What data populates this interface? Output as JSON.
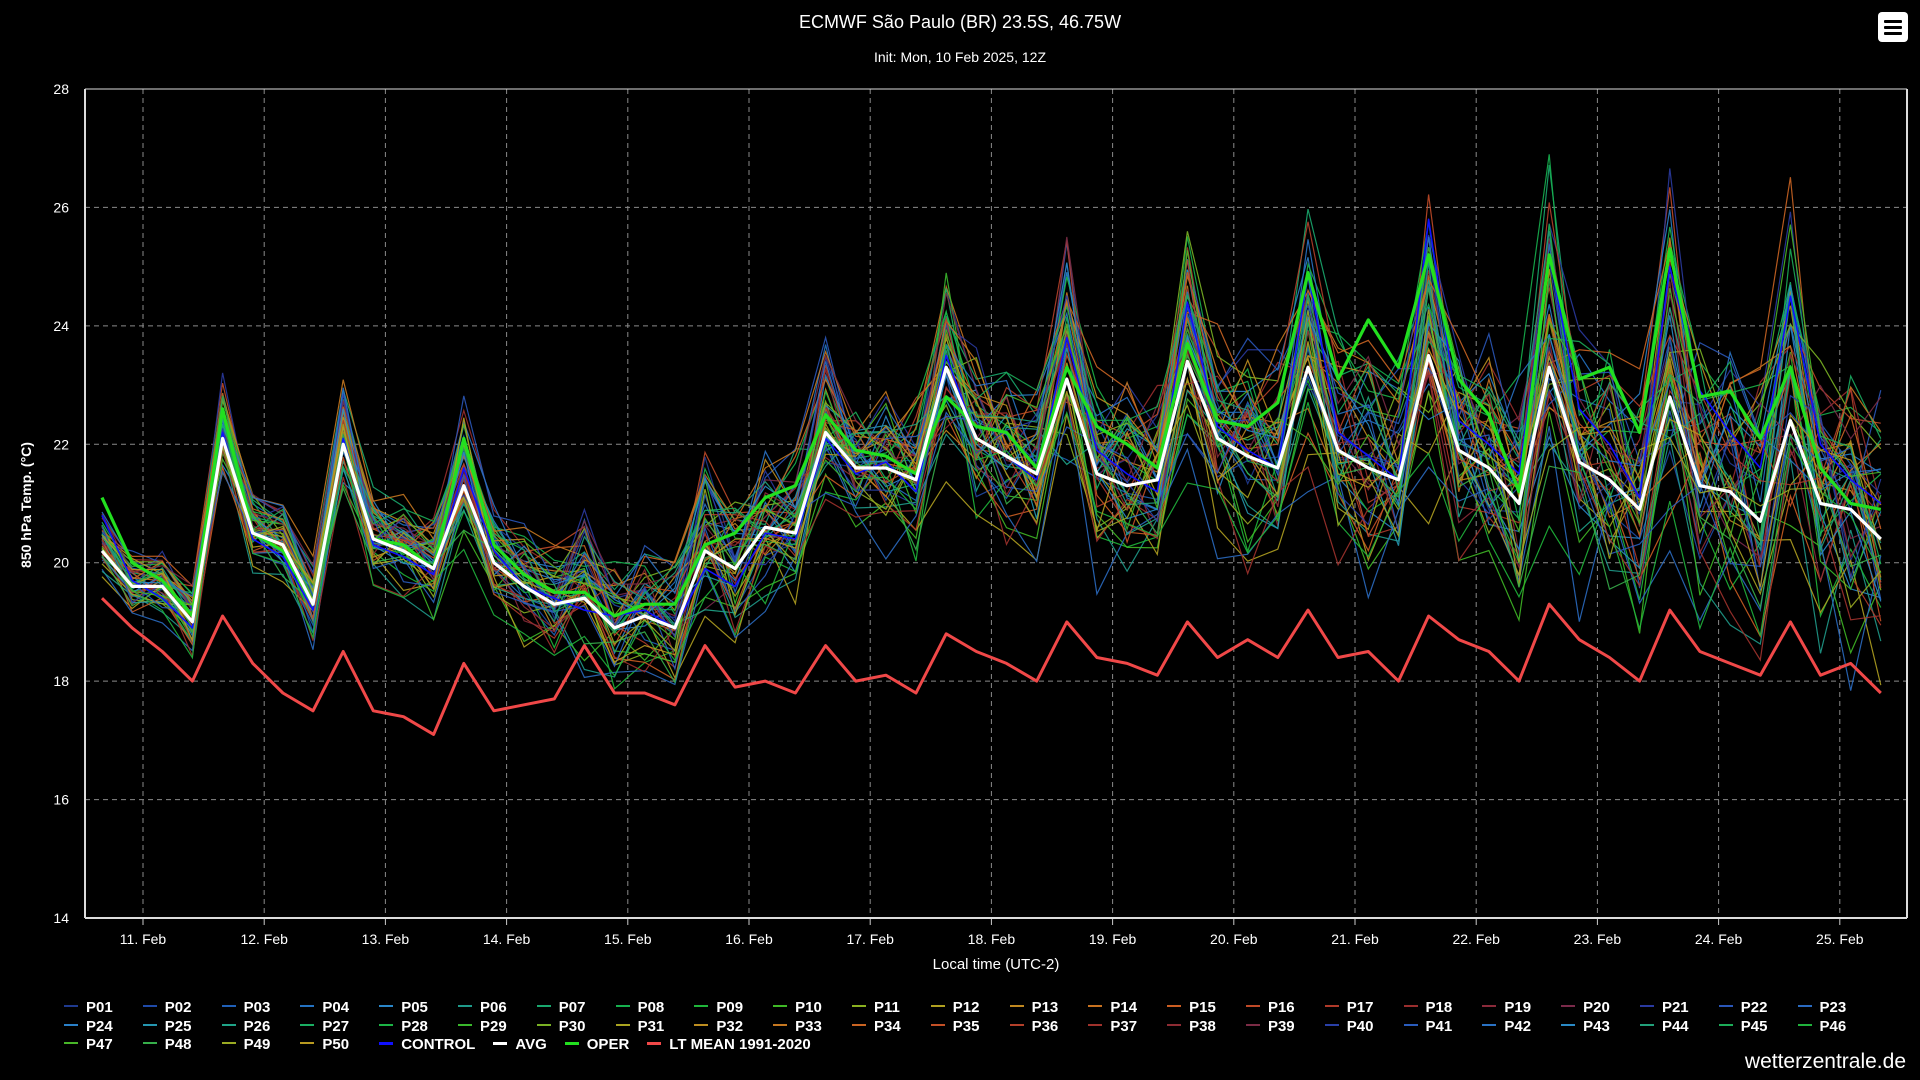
{
  "title": "ECMWF São Paulo (BR) 23.5S, 46.75W",
  "subtitle": "Init: Mon, 10 Feb 2025, 12Z",
  "watermark": "wetterzentrale.de",
  "menu": {
    "icon": "hamburger-menu-icon"
  },
  "colors": {
    "background": "#000000",
    "grid": "#8a8a8a",
    "avg": "#ffffff",
    "oper": "#22e01f",
    "lt_mean": "#f04848",
    "control": "#1010ff"
  },
  "chart_data": {
    "type": "line",
    "title": "ECMWF São Paulo (BR) 23.5S, 46.75W",
    "subtitle": "Init: Mon, 10 Feb 2025, 12Z",
    "xlabel": "Local time (UTC-2)",
    "ylabel": "850 hPa Temp. (°C)",
    "ylim": [
      14,
      28
    ],
    "yticks": [
      "14",
      "16",
      "18",
      "20",
      "22",
      "24",
      "26",
      "28"
    ],
    "x_step_hours": 6,
    "x_tick_labels": [
      "11. Feb",
      "12. Feb",
      "13. Feb",
      "14. Feb",
      "15. Feb",
      "16. Feb",
      "17. Feb",
      "18. Feb",
      "19. Feb",
      "20. Feb",
      "21. Feb",
      "22. Feb",
      "23. Feb",
      "24. Feb",
      "25. Feb"
    ],
    "grid": true,
    "legend_position": "bottom",
    "ensemble_members": [
      {
        "name": "P01",
        "color": "#1f3a8f"
      },
      {
        "name": "P02",
        "color": "#1f4aa8"
      },
      {
        "name": "P03",
        "color": "#2060b8"
      },
      {
        "name": "P04",
        "color": "#2472c2"
      },
      {
        "name": "P05",
        "color": "#2a86c9"
      },
      {
        "name": "P06",
        "color": "#1f9a8a"
      },
      {
        "name": "P07",
        "color": "#19a86e"
      },
      {
        "name": "P08",
        "color": "#16b04e"
      },
      {
        "name": "P09",
        "color": "#1fb63a"
      },
      {
        "name": "P10",
        "color": "#3fb826"
      },
      {
        "name": "P11",
        "color": "#8ab020"
      },
      {
        "name": "P12",
        "color": "#b0a020"
      },
      {
        "name": "P13",
        "color": "#c08820"
      },
      {
        "name": "P14",
        "color": "#c87220"
      },
      {
        "name": "P15",
        "color": "#cc5e22"
      },
      {
        "name": "P16",
        "color": "#c04a28"
      },
      {
        "name": "P17",
        "color": "#b03a2a"
      },
      {
        "name": "P18",
        "color": "#9a2e2e"
      },
      {
        "name": "P19",
        "color": "#8a2a3a"
      },
      {
        "name": "P20",
        "color": "#7a2a4a"
      },
      {
        "name": "P21",
        "color": "#2a3aa0"
      },
      {
        "name": "P22",
        "color": "#2a56b8"
      },
      {
        "name": "P23",
        "color": "#2a6ac0"
      },
      {
        "name": "P24",
        "color": "#2a80c8"
      },
      {
        "name": "P25",
        "color": "#2596b0"
      },
      {
        "name": "P26",
        "color": "#1fa488"
      },
      {
        "name": "P27",
        "color": "#1aae62"
      },
      {
        "name": "P28",
        "color": "#1cb446"
      },
      {
        "name": "P29",
        "color": "#3ab82c"
      },
      {
        "name": "P30",
        "color": "#7ab224"
      },
      {
        "name": "P31",
        "color": "#aaa420"
      },
      {
        "name": "P32",
        "color": "#be8e20"
      },
      {
        "name": "P33",
        "color": "#c67820"
      },
      {
        "name": "P34",
        "color": "#ca6422"
      },
      {
        "name": "P35",
        "color": "#c45026"
      },
      {
        "name": "P36",
        "color": "#b4402a"
      },
      {
        "name": "P37",
        "color": "#a0322c"
      },
      {
        "name": "P38",
        "color": "#8e2c34"
      },
      {
        "name": "P39",
        "color": "#7c2c46"
      },
      {
        "name": "P40",
        "color": "#2a40a8"
      },
      {
        "name": "P41",
        "color": "#2a5cbc"
      },
      {
        "name": "P42",
        "color": "#2a72c4"
      },
      {
        "name": "P43",
        "color": "#2a8ac6"
      },
      {
        "name": "P44",
        "color": "#22a07a"
      },
      {
        "name": "P45",
        "color": "#1cac58"
      },
      {
        "name": "P46",
        "color": "#20b23c"
      },
      {
        "name": "P47",
        "color": "#48b628"
      },
      {
        "name": "P48",
        "color": "#36ae4a"
      },
      {
        "name": "P49",
        "color": "#9aaa22"
      },
      {
        "name": "P50",
        "color": "#b89a20"
      }
    ],
    "series": [
      {
        "name": "CONTROL",
        "color": "#1010ff",
        "values": [
          20.8,
          19.7,
          19.4,
          18.9,
          22.2,
          20.4,
          20.1,
          19.2,
          22.1,
          20.3,
          20.1,
          19.8,
          21.6,
          20.2,
          19.6,
          19.4,
          19.2,
          19.1,
          19.2,
          18.9,
          19.9,
          19.6,
          20.5,
          20.4,
          22.1,
          21.5,
          21.7,
          21.2,
          23.5,
          22.1,
          21.8,
          21.4,
          23.8,
          21.9,
          21.5,
          21.2,
          24.4,
          22.3,
          21.9,
          21.6,
          24.9,
          22.2,
          21.8,
          21.4,
          25.8,
          22.4,
          22.0,
          21.5,
          25.2,
          22.6,
          22.0,
          21.1,
          25.0,
          22.9,
          22.2,
          21.6,
          24.5,
          22.0,
          21.4,
          21.0
        ]
      },
      {
        "name": "AVG",
        "color": "#ffffff",
        "values": [
          20.2,
          19.6,
          19.6,
          19.0,
          22.1,
          20.5,
          20.3,
          19.3,
          22.0,
          20.4,
          20.2,
          19.9,
          21.3,
          20.0,
          19.6,
          19.3,
          19.4,
          18.9,
          19.1,
          18.9,
          20.2,
          19.9,
          20.6,
          20.5,
          22.2,
          21.6,
          21.6,
          21.4,
          23.3,
          22.1,
          21.8,
          21.5,
          23.1,
          21.5,
          21.3,
          21.4,
          23.4,
          22.1,
          21.8,
          21.6,
          23.3,
          21.9,
          21.6,
          21.4,
          23.5,
          21.9,
          21.6,
          21.0,
          23.3,
          21.7,
          21.4,
          20.9,
          22.8,
          21.3,
          21.2,
          20.7,
          22.4,
          21.0,
          20.9,
          20.4
        ]
      },
      {
        "name": "OPER",
        "color": "#22e01f",
        "values": [
          21.1,
          20.0,
          19.7,
          19.1,
          22.6,
          20.5,
          20.2,
          19.3,
          22.0,
          20.4,
          20.3,
          19.9,
          22.1,
          20.3,
          19.8,
          19.5,
          19.5,
          19.1,
          19.3,
          19.3,
          20.3,
          20.5,
          21.1,
          21.3,
          22.5,
          21.9,
          21.8,
          21.5,
          22.8,
          22.3,
          22.2,
          21.6,
          23.3,
          22.3,
          22.0,
          21.6,
          23.7,
          22.4,
          22.3,
          22.7,
          24.9,
          23.1,
          24.1,
          23.3,
          25.2,
          23.1,
          22.5,
          21.2,
          25.2,
          23.1,
          23.3,
          22.2,
          25.3,
          22.8,
          22.9,
          22.1,
          23.3,
          21.6,
          21.0,
          20.9
        ]
      },
      {
        "name": "LT MEAN 1991-2020",
        "color": "#f04848",
        "values": [
          19.4,
          18.9,
          18.5,
          18.0,
          19.1,
          18.3,
          17.8,
          17.5,
          18.5,
          17.5,
          17.4,
          17.1,
          18.3,
          17.5,
          17.6,
          17.7,
          18.6,
          17.8,
          17.8,
          17.6,
          18.6,
          17.9,
          18.0,
          17.8,
          18.6,
          18.0,
          18.1,
          17.8,
          18.8,
          18.5,
          18.3,
          18.0,
          19.0,
          18.4,
          18.3,
          18.1,
          19.0,
          18.4,
          18.7,
          18.4,
          19.2,
          18.4,
          18.5,
          18.0,
          19.1,
          18.7,
          18.5,
          18.0,
          19.3,
          18.7,
          18.4,
          18.0,
          19.2,
          18.5,
          18.3,
          18.1,
          19.0,
          18.1,
          18.3,
          17.8
        ]
      }
    ]
  },
  "legend": {
    "rows": [
      [
        "P01",
        "P02",
        "P03",
        "P04",
        "P05",
        "P06",
        "P07",
        "P08",
        "P09",
        "P10",
        "P11",
        "P12",
        "P13",
        "P14",
        "P15",
        "P16",
        "P17",
        "P18",
        "P19",
        "P20",
        "P21",
        "P22",
        "P23"
      ],
      [
        "P24",
        "P25",
        "P26",
        "P27",
        "P28",
        "P29",
        "P30",
        "P31",
        "P32",
        "P33",
        "P34",
        "P35",
        "P36",
        "P37",
        "P38",
        "P39",
        "P40",
        "P41",
        "P42",
        "P43",
        "P44",
        "P45",
        "P46"
      ],
      [
        "P47",
        "P48",
        "P49",
        "P50"
      ]
    ],
    "special": [
      "CONTROL",
      "AVG",
      "OPER",
      "LT MEAN 1991-2020"
    ]
  }
}
